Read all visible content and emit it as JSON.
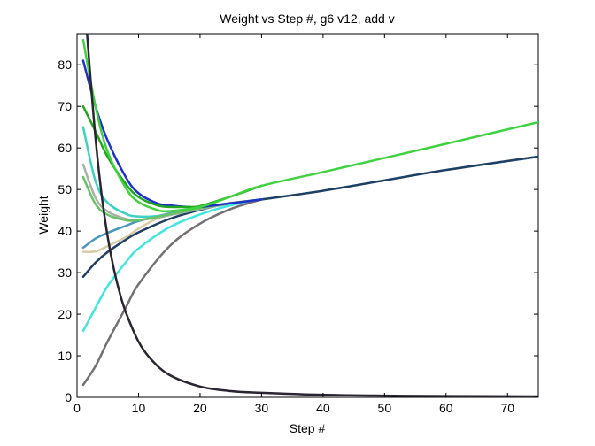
{
  "chart_data": {
    "type": "line",
    "title": "Weight vs Step #, g6 v12, add v",
    "xlabel": "Step #",
    "ylabel": "Weight",
    "xlim": [
      0,
      75
    ],
    "ylim": [
      0,
      87.5
    ],
    "xticks": [
      0,
      10,
      20,
      30,
      40,
      50,
      60,
      70
    ],
    "yticks": [
      0,
      10,
      20,
      30,
      40,
      50,
      60,
      70,
      80
    ],
    "grid": false,
    "legend": "none",
    "series": [
      {
        "color": "#4a97bd",
        "x": [
          1,
          3,
          5,
          8,
          10,
          15,
          20,
          25,
          30,
          40,
          50,
          60,
          75
        ],
        "y": [
          36.0,
          38.2,
          39.6,
          41.3,
          42.4,
          44.2,
          45.6,
          46.7,
          47.6,
          49.7,
          52.2,
          54.7,
          57.9
        ]
      },
      {
        "color": "#1f3f63",
        "x": [
          1,
          3,
          5,
          8,
          10,
          15,
          20,
          25,
          30,
          40,
          50,
          60,
          75
        ],
        "y": [
          29.0,
          32.4,
          35.0,
          38.0,
          39.7,
          42.9,
          45.1,
          46.7,
          47.6,
          49.7,
          52.2,
          54.7,
          57.9
        ]
      },
      {
        "color": "#d7cca8",
        "x": [
          1,
          3,
          5,
          8,
          10,
          13,
          15,
          20,
          25,
          30
        ],
        "y": [
          35.0,
          35.1,
          36.4,
          38.6,
          40.6,
          43.0,
          44.0,
          45.6,
          46.8,
          47.6
        ]
      },
      {
        "color": "#3dd1c3",
        "x": [
          1,
          3,
          5,
          8,
          10,
          13,
          15,
          20,
          25,
          30
        ],
        "y": [
          65.0,
          52.0,
          46.8,
          44.1,
          43.5,
          43.6,
          44.0,
          45.4,
          46.6,
          47.6
        ]
      },
      {
        "color": "#a8b1a5",
        "x": [
          1,
          3,
          5,
          8,
          10,
          13,
          15,
          20,
          25,
          30
        ],
        "y": [
          56.0,
          48.0,
          44.7,
          42.9,
          42.7,
          43.2,
          43.8,
          45.3,
          46.6,
          47.6
        ]
      },
      {
        "color": "#66c266",
        "x": [
          1,
          3,
          5,
          8,
          10,
          13,
          15,
          20,
          25,
          30
        ],
        "y": [
          53.0,
          46.5,
          43.9,
          42.6,
          42.6,
          43.4,
          44.0,
          45.5,
          46.7,
          47.6
        ]
      },
      {
        "color": "#42e6e0",
        "x": [
          1,
          3,
          5,
          8,
          10,
          15,
          20,
          25,
          30
        ],
        "y": [
          16.0,
          21.5,
          26.8,
          32.6,
          35.8,
          40.9,
          44.0,
          46.2,
          47.6
        ]
      },
      {
        "color": "#747074",
        "x": [
          1,
          3,
          5,
          8,
          10,
          15,
          20,
          25,
          30
        ],
        "y": [
          3.0,
          7.5,
          13.5,
          21.8,
          27.2,
          36.3,
          41.8,
          45.3,
          47.6
        ]
      },
      {
        "color": "#1f30c9",
        "x": [
          1,
          3,
          5,
          8,
          10,
          13,
          15,
          18,
          20,
          25,
          30
        ],
        "y": [
          81.0,
          70.0,
          61.7,
          52.8,
          49.1,
          46.7,
          46.2,
          45.8,
          45.8,
          46.7,
          47.6
        ]
      },
      {
        "color": "#1ea81e",
        "x": [
          1,
          3,
          5,
          8,
          10,
          13,
          15,
          18,
          20,
          25,
          30
        ],
        "y": [
          70.0,
          64.0,
          57.8,
          51.2,
          48.2,
          46.2,
          45.8,
          45.8,
          46.0,
          48.3,
          50.9
        ]
      },
      {
        "color": "#3fd23f",
        "x": [
          1,
          3,
          5,
          8,
          10,
          13,
          15,
          20,
          25,
          30,
          40,
          50,
          60,
          75
        ],
        "y": [
          86.0,
          70.0,
          59.0,
          50.2,
          47.0,
          45.1,
          44.8,
          45.8,
          48.3,
          50.9,
          54.2,
          57.6,
          61.0,
          66.2
        ]
      },
      {
        "color": "#2a2530",
        "x": [
          1,
          2,
          3,
          4,
          5,
          6,
          7,
          8,
          10,
          12,
          15,
          20,
          25,
          30,
          40,
          50,
          60,
          75
        ],
        "y": [
          100,
          80.3,
          62.4,
          48.7,
          38.5,
          30.8,
          24.8,
          20.2,
          13.4,
          9.2,
          5.4,
          2.6,
          1.5,
          1.1,
          0.6,
          0.4,
          0.3,
          0.2
        ]
      }
    ]
  }
}
